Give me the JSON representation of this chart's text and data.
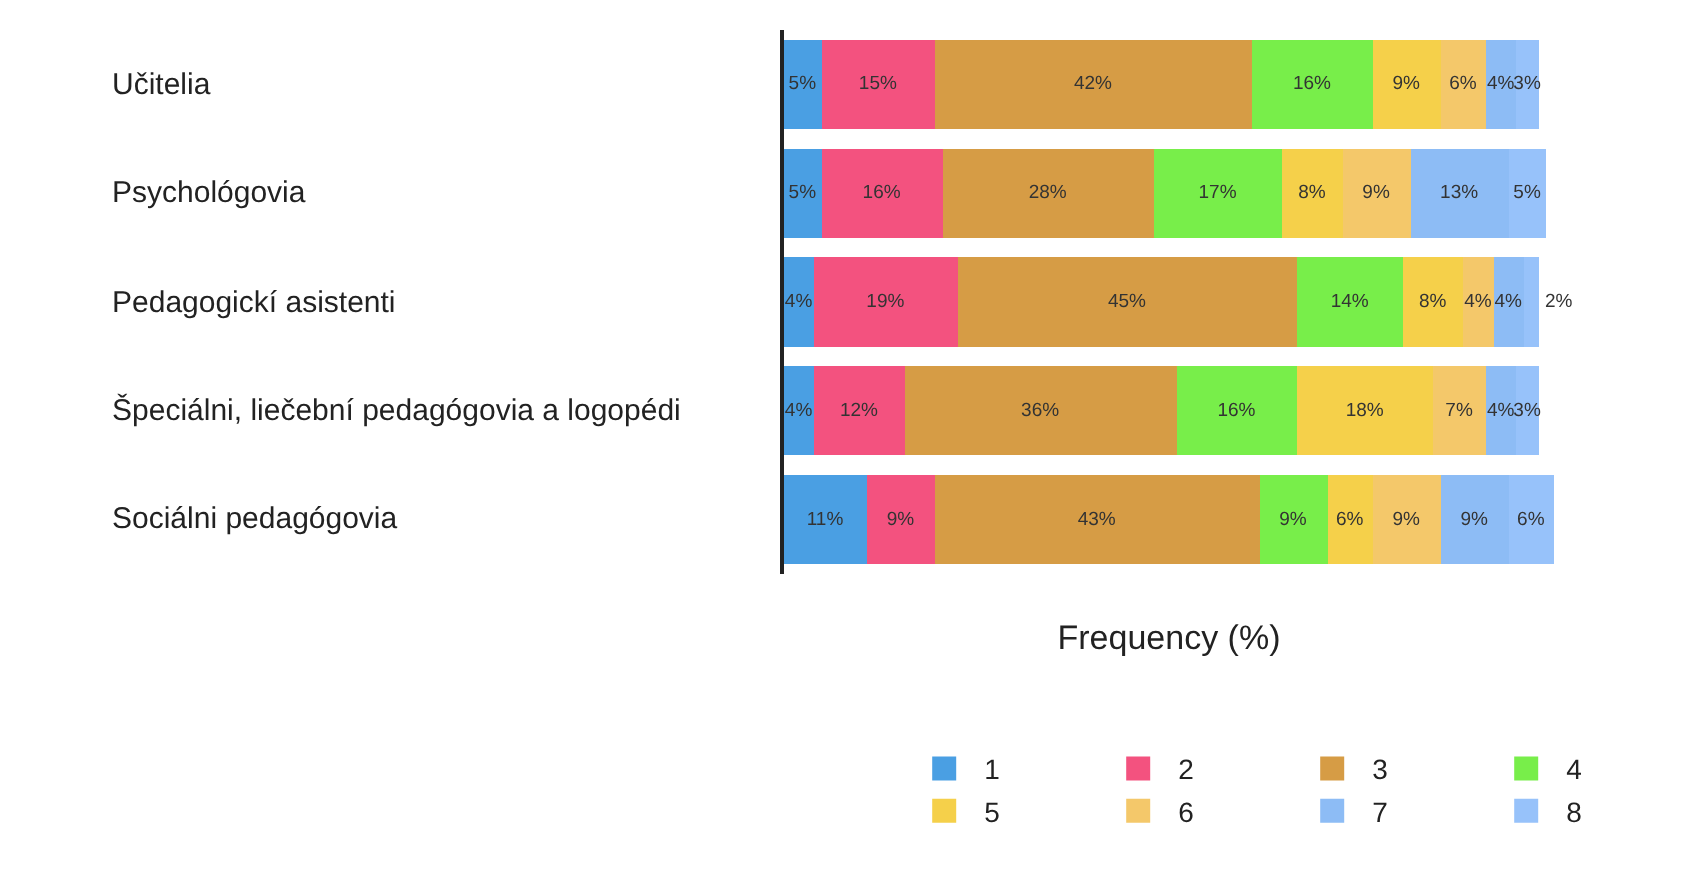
{
  "chart_data": {
    "type": "bar",
    "orientation": "horizontal",
    "stacked": true,
    "xlabel": "Frequency (%)",
    "tick_labels": "y",
    "legend": "bottom",
    "categories": [
      "Učitelia",
      "Psychológovia",
      "Pedagogickí asistenti",
      "Špeciálni, liečební pedagógovia a logopédi",
      "Sociálni pedagógovia"
    ],
    "series": [
      {
        "name": "1",
        "color": "#4a9fe3",
        "values": [
          5,
          5,
          4,
          4,
          11
        ],
        "value_labels": [
          "5%",
          "5%",
          "4%",
          "4%",
          "11%"
        ]
      },
      {
        "name": "2",
        "color": "#f3527f",
        "values": [
          15,
          16,
          19,
          12,
          9
        ],
        "value_labels": [
          "15%",
          "16%",
          "19%",
          "12%",
          "9%"
        ]
      },
      {
        "name": "3",
        "color": "#d69c45",
        "values": [
          42,
          28,
          45,
          36,
          43
        ],
        "value_labels": [
          "42%",
          "28%",
          "45%",
          "36%",
          "43%"
        ]
      },
      {
        "name": "4",
        "color": "#78ee4a",
        "values": [
          16,
          17,
          14,
          16,
          9
        ],
        "value_labels": [
          "16%",
          "17%",
          "14%",
          "16%",
          "9%"
        ]
      },
      {
        "name": "5",
        "color": "#f5d04a",
        "values": [
          9,
          8,
          8,
          18,
          6
        ],
        "value_labels": [
          "9%",
          "8%",
          "8%",
          "18%",
          "6%"
        ]
      },
      {
        "name": "6",
        "color": "#f4c86a",
        "values": [
          6,
          9,
          4,
          7,
          9
        ],
        "value_labels": [
          "6%",
          "9%",
          "4%",
          "7%",
          "9%"
        ]
      },
      {
        "name": "7",
        "color": "#8dbcf5",
        "values": [
          4,
          13,
          4,
          4,
          9
        ],
        "value_labels": [
          "4%",
          "13%",
          "4%",
          "4%",
          "9%"
        ]
      },
      {
        "name": "8",
        "color": "#97c2fa",
        "values": [
          3,
          5,
          2,
          3,
          6
        ],
        "value_labels": [
          "3%",
          "5%",
          "2%",
          "3%",
          "6%"
        ]
      }
    ]
  }
}
